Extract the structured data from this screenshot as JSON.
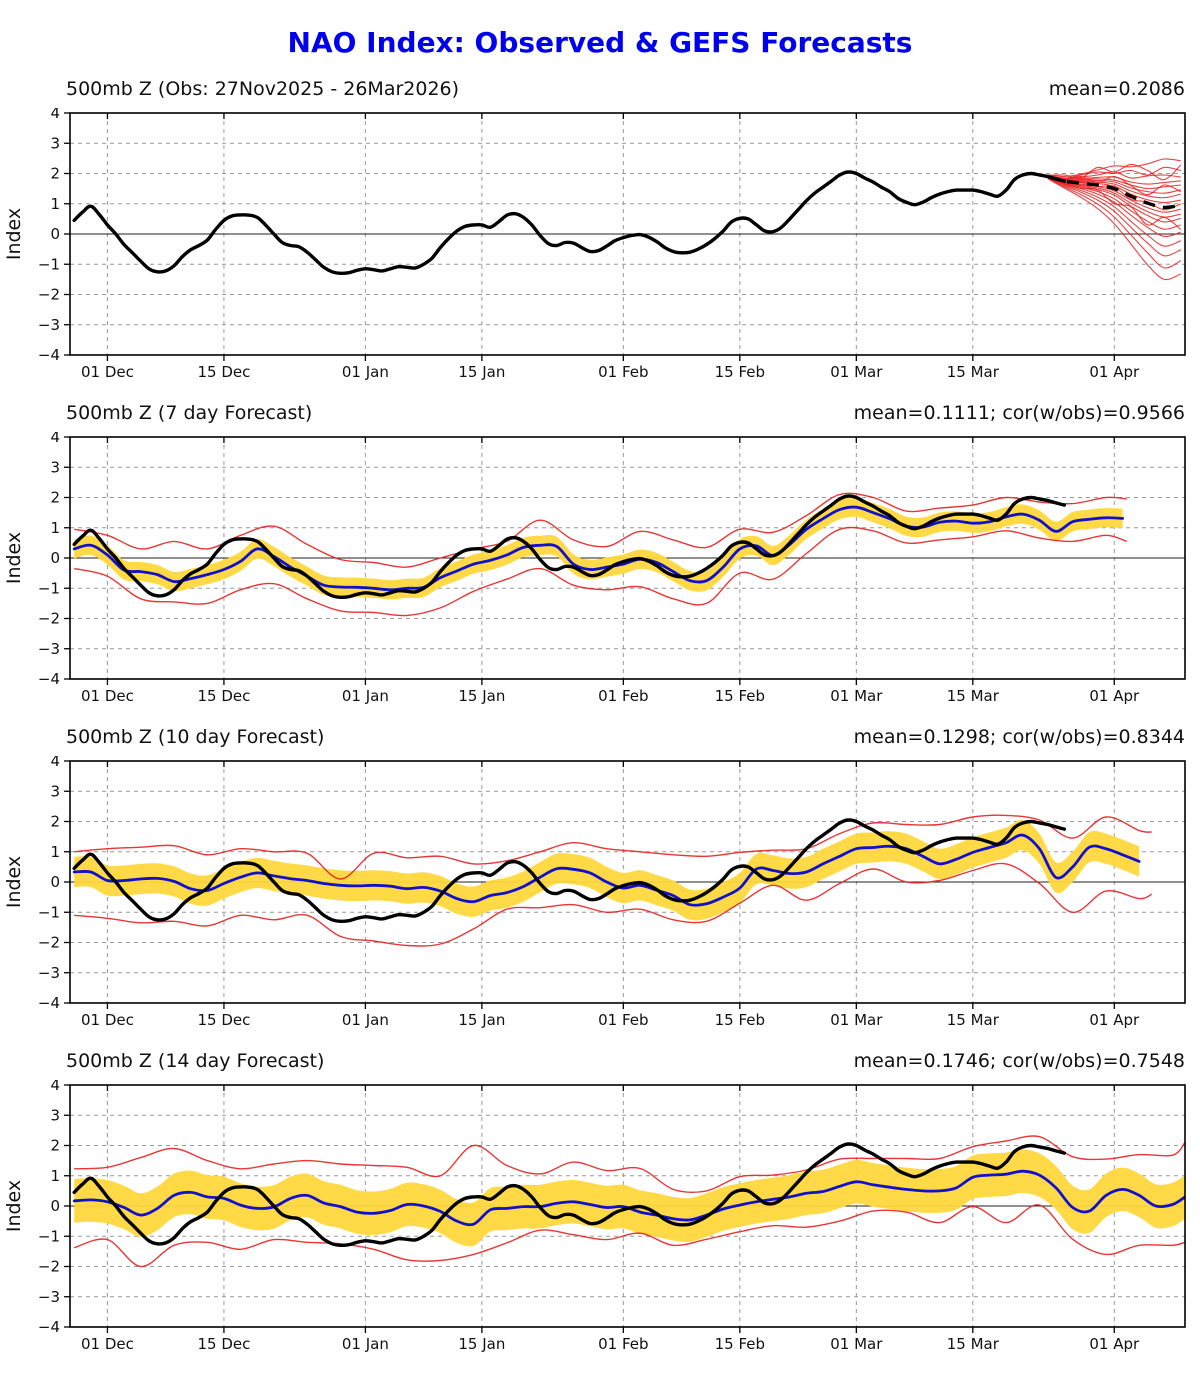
{
  "title": "NAO Index: Observed & GEFS Forecasts",
  "colors": {
    "title": "#0000ee",
    "obs": "#000000",
    "ens_member": "#e62020",
    "ens_mean_blue": "#1111cc",
    "band": "#ffd83c",
    "grid": "#999999",
    "zero_line": "#222222",
    "frame": "#000000"
  },
  "chart_data": {
    "type": "line",
    "title": "NAO Index: Observed & GEFS Forecasts",
    "ylabel": "Index",
    "ylim": [
      -4,
      4
    ],
    "x_domain_days": [
      -0.5,
      133.5
    ],
    "grid": "dashed",
    "legend_position": "none",
    "x_ticks": [
      {
        "day": 4,
        "label": "01 Dec"
      },
      {
        "day": 18,
        "label": "15 Dec"
      },
      {
        "day": 35,
        "label": "01 Jan"
      },
      {
        "day": 49,
        "label": "15 Jan"
      },
      {
        "day": 66,
        "label": "01 Feb"
      },
      {
        "day": 80,
        "label": "15 Feb"
      },
      {
        "day": 94,
        "label": "01 Mar"
      },
      {
        "day": 108,
        "label": "15 Mar"
      },
      {
        "day": 125,
        "label": "01 Apr"
      }
    ],
    "y_ticks": [
      -4,
      -3,
      -2,
      -1,
      0,
      1,
      2,
      3,
      4
    ],
    "obs": {
      "x0": 0,
      "dx": 1,
      "y": [
        0.45,
        0.72,
        0.92,
        0.65,
        0.3,
        0.0,
        -0.35,
        -0.62,
        -0.9,
        -1.15,
        -1.25,
        -1.22,
        -1.05,
        -0.75,
        -0.52,
        -0.38,
        -0.2,
        0.15,
        0.45,
        0.6,
        0.63,
        0.62,
        0.55,
        0.3,
        0.0,
        -0.28,
        -0.38,
        -0.42,
        -0.6,
        -0.85,
        -1.1,
        -1.25,
        -1.3,
        -1.28,
        -1.2,
        -1.15,
        -1.18,
        -1.22,
        -1.15,
        -1.08,
        -1.1,
        -1.12,
        -1.0,
        -0.8,
        -0.45,
        -0.15,
        0.1,
        0.25,
        0.3,
        0.3,
        0.22,
        0.4,
        0.62,
        0.67,
        0.55,
        0.3,
        -0.05,
        -0.32,
        -0.38,
        -0.28,
        -0.3,
        -0.45,
        -0.58,
        -0.55,
        -0.4,
        -0.22,
        -0.12,
        -0.05,
        -0.02,
        -0.1,
        -0.25,
        -0.45,
        -0.58,
        -0.62,
        -0.6,
        -0.5,
        -0.35,
        -0.15,
        0.1,
        0.4,
        0.52,
        0.5,
        0.3,
        0.1,
        0.08,
        0.22,
        0.5,
        0.8,
        1.1,
        1.35,
        1.55,
        1.75,
        1.95,
        2.05,
        2.0,
        1.85,
        1.72,
        1.55,
        1.4,
        1.18,
        1.05,
        0.97,
        1.05,
        1.2,
        1.32,
        1.4,
        1.45,
        1.45,
        1.45,
        1.4,
        1.32,
        1.25,
        1.45,
        1.8,
        1.95,
        2.0,
        1.95,
        1.9,
        1.82,
        1.75
      ]
    },
    "panels": [
      {
        "name": "observed",
        "title": "500mb Z (Obs: 27Nov2025 - 26Mar2026)",
        "stats": "mean=0.2086",
        "kind": "obs_ensemble",
        "ens_mean_dashed": {
          "x": [
            117,
            119,
            121,
            123,
            125,
            127,
            129,
            131,
            133
          ],
          "y": [
            1.9,
            1.75,
            1.68,
            1.62,
            1.5,
            1.25,
            1.02,
            0.88,
            0.95
          ]
        },
        "member_x": [
          117,
          119,
          121,
          123,
          125,
          127,
          129,
          131,
          133
        ],
        "members": [
          [
            1.95,
            1.9,
            1.98,
            2.12,
            2.25,
            2.22,
            2.32,
            2.48,
            2.42
          ],
          [
            1.93,
            1.84,
            1.95,
            2.05,
            2.0,
            2.1,
            1.95,
            2.2,
            2.1
          ],
          [
            1.92,
            1.85,
            1.88,
            1.95,
            2.05,
            1.85,
            1.92,
            1.95,
            1.88
          ],
          [
            1.92,
            1.82,
            1.83,
            1.87,
            1.88,
            1.72,
            1.65,
            1.7,
            1.76
          ],
          [
            1.91,
            1.8,
            1.8,
            1.82,
            1.78,
            1.62,
            1.5,
            1.56,
            1.62
          ],
          [
            1.91,
            1.78,
            1.77,
            1.77,
            1.72,
            1.52,
            1.4,
            1.35,
            1.46
          ],
          [
            1.9,
            1.78,
            1.74,
            1.72,
            1.65,
            1.42,
            1.26,
            1.2,
            1.32
          ],
          [
            1.9,
            1.76,
            1.71,
            1.67,
            1.58,
            1.32,
            1.13,
            1.04,
            1.12
          ],
          [
            1.9,
            1.72,
            1.7,
            1.58,
            1.55,
            1.15,
            1.05,
            0.8,
            1.0
          ],
          [
            1.89,
            1.74,
            1.65,
            1.57,
            1.42,
            1.12,
            0.87,
            0.72,
            0.82
          ],
          [
            1.89,
            1.72,
            1.62,
            1.52,
            1.35,
            1.02,
            0.74,
            0.56,
            0.66
          ],
          [
            1.88,
            1.7,
            1.59,
            1.47,
            1.28,
            0.92,
            0.61,
            0.4,
            0.52
          ],
          [
            1.88,
            1.68,
            1.55,
            1.4,
            1.16,
            0.77,
            0.42,
            0.16,
            0.3
          ],
          [
            1.87,
            1.66,
            1.5,
            1.32,
            1.05,
            0.62,
            0.22,
            -0.08,
            0.06
          ],
          [
            1.86,
            1.63,
            1.44,
            1.22,
            0.9,
            0.42,
            -0.04,
            -0.4,
            -0.22
          ],
          [
            1.85,
            1.6,
            1.38,
            1.12,
            0.75,
            0.22,
            -0.3,
            -0.72,
            -0.52
          ],
          [
            1.84,
            1.56,
            1.3,
            0.99,
            0.56,
            -0.03,
            -0.62,
            -1.12,
            -0.88
          ],
          [
            1.83,
            1.52,
            1.21,
            0.84,
            0.34,
            -0.33,
            -1.02,
            -1.5,
            -1.32
          ],
          [
            1.94,
            1.95,
            1.85,
            2.2,
            2.05,
            2.3,
            2.1,
            1.8,
            2.28
          ],
          [
            1.88,
            1.67,
            1.52,
            1.45,
            1.0,
            0.9,
            0.3,
            0.55,
            0.15
          ],
          [
            1.92,
            1.8,
            1.9,
            1.7,
            1.9,
            1.6,
            1.3,
            1.62,
            1.4
          ]
        ]
      },
      {
        "name": "7day",
        "title": "500mb Z (7 day Forecast)",
        "stats": "mean=0.1111; cor(w/obs)=0.9566",
        "kind": "forecast",
        "band_hw": 0.32,
        "blue": {
          "x0": 0,
          "dx": 2,
          "x_end": 126,
          "y": [
            0.3,
            0.42,
            0.1,
            -0.4,
            -0.45,
            -0.55,
            -0.78,
            -0.68,
            -0.55,
            -0.38,
            -0.11,
            0.3,
            0.05,
            -0.3,
            -0.6,
            -0.9,
            -0.96,
            -0.97,
            -1.0,
            -1.05,
            -1.0,
            -0.97,
            -0.65,
            -0.43,
            -0.2,
            -0.08,
            0.1,
            0.35,
            0.42,
            0.38,
            -0.2,
            -0.38,
            -0.3,
            -0.2,
            -0.04,
            -0.15,
            -0.45,
            -0.75,
            -0.75,
            -0.3,
            0.3,
            0.4,
            0.08,
            0.45,
            0.95,
            1.3,
            1.6,
            1.68,
            1.5,
            1.3,
            1.05,
            1.02,
            1.18,
            1.22,
            1.15,
            1.2,
            1.36,
            1.45,
            1.25,
            0.88,
            1.2,
            1.28,
            1.33,
            1.31
          ]
        },
        "red_hi": {
          "x0": 0,
          "dx": 4,
          "x_end": 126.5,
          "y": [
            0.95,
            0.75,
            0.3,
            0.55,
            0.3,
            0.75,
            1.05,
            0.45,
            -0.05,
            -0.15,
            -0.3,
            0.0,
            0.3,
            0.55,
            1.25,
            0.6,
            0.38,
            0.88,
            0.6,
            0.35,
            0.95,
            0.85,
            1.4,
            2.1,
            2.0,
            1.55,
            1.65,
            1.75,
            2.0,
            1.85,
            1.8,
            2.0,
            1.95
          ]
        },
        "red_lo": {
          "x0": 0,
          "dx": 4,
          "x_end": 126.5,
          "y": [
            -0.35,
            -0.6,
            -1.35,
            -1.45,
            -1.5,
            -1.05,
            -0.85,
            -1.35,
            -1.75,
            -1.8,
            -1.9,
            -1.65,
            -1.1,
            -0.7,
            -0.35,
            -0.9,
            -1.05,
            -0.95,
            -1.35,
            -1.5,
            -0.5,
            -0.7,
            0.15,
            0.95,
            0.9,
            0.5,
            0.6,
            0.7,
            0.9,
            0.66,
            0.55,
            0.75,
            0.55
          ]
        }
      },
      {
        "name": "10day",
        "title": "500mb Z (10 day Forecast)",
        "stats": "mean=0.1298; cor(w/obs)=0.8344",
        "kind": "forecast",
        "band_hw": 0.5,
        "blue": {
          "x0": 0,
          "dx": 2,
          "x_end": 129.5,
          "y": [
            0.33,
            0.33,
            0.05,
            0.05,
            0.1,
            0.12,
            0.02,
            -0.22,
            -0.28,
            -0.05,
            0.16,
            0.3,
            0.2,
            0.11,
            0.05,
            -0.05,
            -0.11,
            -0.13,
            -0.11,
            -0.14,
            -0.22,
            -0.18,
            -0.3,
            -0.55,
            -0.65,
            -0.45,
            -0.35,
            -0.15,
            0.16,
            0.44,
            0.42,
            0.3,
            0.0,
            -0.2,
            -0.11,
            -0.27,
            -0.45,
            -0.75,
            -0.72,
            -0.5,
            -0.2,
            0.43,
            0.38,
            0.28,
            0.33,
            0.6,
            0.85,
            1.1,
            1.14,
            1.18,
            1.1,
            0.85,
            0.6,
            0.75,
            0.98,
            1.14,
            1.3,
            1.55,
            1.1,
            0.15,
            0.5,
            1.15,
            1.1,
            0.9,
            0.68
          ]
        },
        "red_hi": {
          "x0": 0,
          "dx": 4,
          "x_end": 129.5,
          "y": [
            1.0,
            1.1,
            1.15,
            1.2,
            0.9,
            1.1,
            1.0,
            0.95,
            0.1,
            0.95,
            0.8,
            0.85,
            0.6,
            0.7,
            1.0,
            1.3,
            1.1,
            1.0,
            0.9,
            0.85,
            0.98,
            1.05,
            1.1,
            1.6,
            1.95,
            1.9,
            1.9,
            2.15,
            2.2,
            2.05,
            1.45,
            2.15,
            1.7,
            1.65
          ]
        },
        "red_lo": {
          "x0": 0,
          "dx": 4,
          "x_end": 129.5,
          "y": [
            -1.1,
            -1.2,
            -1.35,
            -1.3,
            -1.45,
            -1.1,
            -1.25,
            -1.1,
            -1.8,
            -1.95,
            -2.1,
            -2.05,
            -1.55,
            -0.9,
            -0.85,
            -0.75,
            -1.0,
            -0.9,
            -1.25,
            -1.3,
            -0.7,
            -0.11,
            -0.6,
            -0.05,
            0.43,
            0.0,
            0.05,
            0.38,
            0.6,
            -0.05,
            -1.0,
            -0.3,
            -0.55,
            -0.4
          ]
        }
      },
      {
        "name": "14day",
        "title": "500mb Z (14 day Forecast)",
        "stats": "mean=0.1746; cor(w/obs)=0.7548",
        "kind": "forecast",
        "band_hw": 0.72,
        "blue": {
          "x0": 0,
          "dx": 2,
          "x_end": 133.5,
          "y": [
            0.17,
            0.2,
            0.14,
            -0.05,
            -0.3,
            -0.08,
            0.35,
            0.45,
            0.3,
            0.25,
            0.03,
            -0.08,
            -0.03,
            0.25,
            0.35,
            0.1,
            -0.02,
            -0.2,
            -0.24,
            -0.15,
            0.05,
            0.0,
            -0.18,
            -0.5,
            -0.6,
            -0.13,
            -0.08,
            -0.02,
            -0.02,
            0.09,
            0.14,
            0.05,
            -0.05,
            -0.02,
            -0.2,
            -0.3,
            -0.42,
            -0.46,
            -0.3,
            -0.1,
            0.03,
            0.14,
            0.22,
            0.3,
            0.42,
            0.48,
            0.65,
            0.8,
            0.7,
            0.62,
            0.55,
            0.5,
            0.5,
            0.6,
            0.95,
            1.02,
            1.05,
            1.15,
            1.02,
            0.6,
            -0.05,
            -0.17,
            0.35,
            0.55,
            0.35,
            0.0,
            0.05,
            0.3
          ]
        },
        "red_hi": {
          "x0": 0,
          "dx": 4,
          "x_end": 133.5,
          "y": [
            1.23,
            1.28,
            1.6,
            1.9,
            1.5,
            1.23,
            1.39,
            1.5,
            1.39,
            1.34,
            1.28,
            1.0,
            2.0,
            1.34,
            1.06,
            1.45,
            1.17,
            1.24,
            0.55,
            0.5,
            0.97,
            1.02,
            1.19,
            1.55,
            1.57,
            1.57,
            1.57,
            1.96,
            2.15,
            2.29,
            1.63,
            1.55,
            1.7,
            1.68,
            2.1
          ]
        },
        "red_lo": {
          "x0": 0,
          "dx": 4,
          "x_end": 133.5,
          "y": [
            -1.38,
            -1.11,
            -2.0,
            -1.3,
            -1.2,
            -1.43,
            -1.11,
            -1.2,
            -1.25,
            -1.43,
            -1.78,
            -1.8,
            -1.6,
            -1.22,
            -0.8,
            -0.95,
            -1.11,
            -0.9,
            -1.3,
            -1.1,
            -0.85,
            -0.65,
            -0.7,
            -0.5,
            -0.17,
            -0.2,
            -0.55,
            -0.02,
            -0.55,
            0.03,
            -1.1,
            -1.6,
            -1.3,
            -1.3,
            -1.2
          ]
        }
      }
    ]
  }
}
